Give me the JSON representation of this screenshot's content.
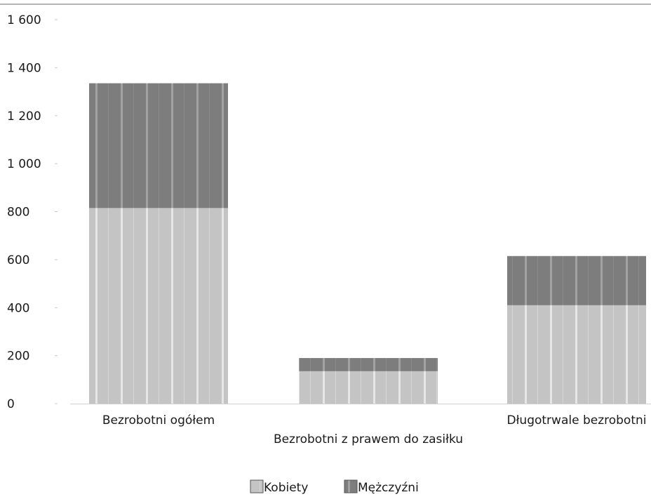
{
  "chart_data": {
    "type": "bar",
    "stacked": true,
    "title": "",
    "xlabel": "",
    "ylabel": "",
    "ylim": [
      0,
      1600
    ],
    "yticks": [
      0,
      200,
      400,
      600,
      800,
      1000,
      1200,
      1400,
      1600
    ],
    "ytick_labels": [
      "0",
      "200",
      "400",
      "600",
      "800",
      "1 000",
      "1 200",
      "1 400",
      "1 600"
    ],
    "categories": [
      "Bezrobotni ogółem",
      "Bezrobotni z prawem do zasiłku",
      "Długotrwale bezrobotni"
    ],
    "series": [
      {
        "name": "Kobiety",
        "values": [
          815,
          135,
          410
        ],
        "color": "#c4c4c4"
      },
      {
        "name": "Mężczyźni",
        "values": [
          520,
          55,
          205
        ],
        "color": "#7d7d7d"
      }
    ],
    "grid": false,
    "legend_position": "bottom"
  }
}
